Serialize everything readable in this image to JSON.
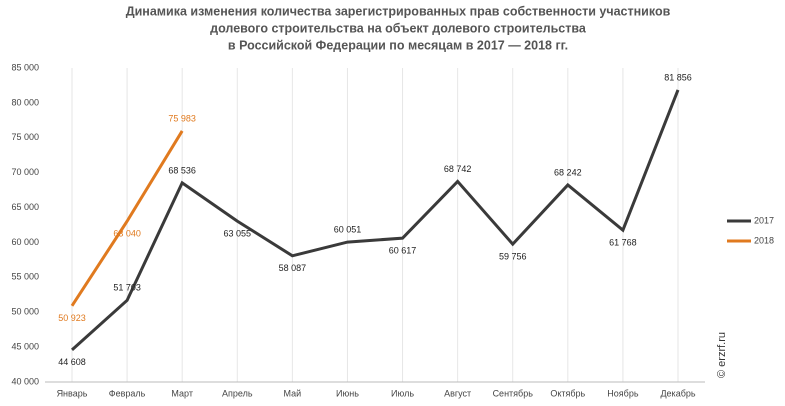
{
  "chart_data": {
    "type": "line",
    "title": [
      "Динамика изменения количества зарегистрированных прав собственности участников",
      "долевого строительства на объект долевого строительства",
      "в Российской Федерации по месяцам в 2017 — 2018 гг."
    ],
    "categories": [
      "Январь",
      "Февраль",
      "Март",
      "Апрель",
      "Май",
      "Июнь",
      "Июль",
      "Август",
      "Сентябрь",
      "Октябрь",
      "Ноябрь",
      "Декабрь"
    ],
    "series": [
      {
        "name": "2017",
        "color": "#3a3a3a",
        "label_color": "#222222",
        "values": [
          44608,
          51703,
          68536,
          63055,
          58087,
          60051,
          60617,
          68742,
          59756,
          68242,
          61768,
          81856
        ],
        "value_labels": [
          "44 608",
          "51 703",
          "68 536",
          "63 055",
          "58 087",
          "60 051",
          "60 617",
          "68 742",
          "59 756",
          "68 242",
          "61 768",
          "81 856"
        ]
      },
      {
        "name": "2018",
        "color": "#e07a1f",
        "label_color": "#e07a1f",
        "values": [
          50923,
          63040,
          75983,
          null,
          null,
          null,
          null,
          null,
          null,
          null,
          null,
          null
        ],
        "value_labels": [
          "50 923",
          "63 040",
          "75 983",
          null,
          null,
          null,
          null,
          null,
          null,
          null,
          null,
          null
        ]
      }
    ],
    "ylim": [
      40000,
      85000
    ],
    "yticks": [
      {
        "value": 40000,
        "label": "40 000"
      },
      {
        "value": 45000,
        "label": "45 000"
      },
      {
        "value": 50000,
        "label": "50 000"
      },
      {
        "value": 55000,
        "label": "55 000"
      },
      {
        "value": 60000,
        "label": "60 000"
      },
      {
        "value": 65000,
        "label": "65 000"
      },
      {
        "value": 70000,
        "label": "70 000"
      },
      {
        "value": 75000,
        "label": "75 000"
      },
      {
        "value": 80000,
        "label": "80 000"
      },
      {
        "value": 85000,
        "label": "85 000"
      }
    ],
    "grid": true,
    "legend": "right",
    "watermark": "© erzrf.ru"
  }
}
